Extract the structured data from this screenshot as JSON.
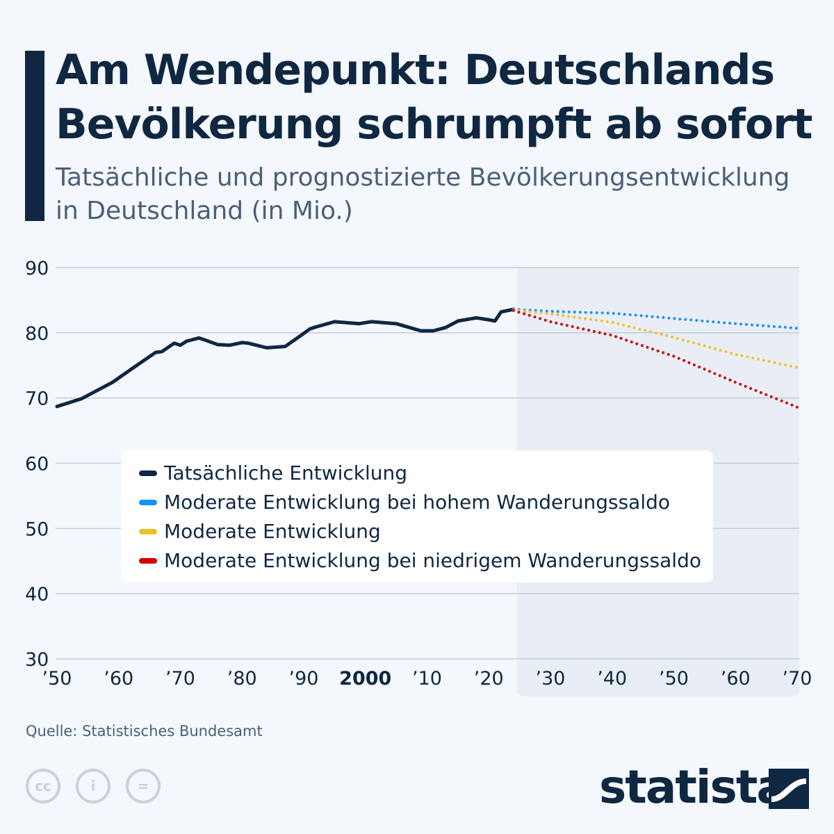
{
  "header": {
    "title": "Am Wendepunkt: Deutschlands Bevölkerung schrumpft ab sofort",
    "subtitle": "Tatsächliche und prognostizierte Bevölkerungsentwicklung in Deutschland (in Mio.)"
  },
  "chart_data": {
    "type": "line",
    "title": "Am Wendepunkt: Deutschlands Bevölkerung schrumpft ab sofort",
    "subtitle": "Tatsächliche und prognostizierte Bevölkerungsentwicklung in Deutschland (in Mio.)",
    "xlim": [
      1950,
      2070
    ],
    "ylim": [
      30,
      90
    ],
    "yticks": [
      90,
      80,
      70,
      60,
      50,
      40,
      30
    ],
    "xticks": [
      {
        "year": 1950,
        "label": "’50"
      },
      {
        "year": 1960,
        "label": "’60"
      },
      {
        "year": 1970,
        "label": "’70"
      },
      {
        "year": 1980,
        "label": "’80"
      },
      {
        "year": 1990,
        "label": "’90"
      },
      {
        "year": 2000,
        "label": "2000",
        "bold": true
      },
      {
        "year": 2010,
        "label": "’10"
      },
      {
        "year": 2020,
        "label": "’20"
      },
      {
        "year": 2030,
        "label": "’30"
      },
      {
        "year": 2040,
        "label": "’40"
      },
      {
        "year": 2050,
        "label": "’50"
      },
      {
        "year": 2060,
        "label": "’60"
      },
      {
        "year": 2070,
        "label": "’70"
      }
    ],
    "grid": true,
    "forecast_region_start": 2024,
    "legend_position": "center-left",
    "series": [
      {
        "name": "Tatsächliche Entwicklung",
        "color": "#0f2741",
        "style": "solid",
        "x": [
          1950,
          1954,
          1959,
          1962,
          1966,
          1967,
          1969,
          1970,
          1971,
          1973,
          1974,
          1976,
          1978,
          1980,
          1981,
          1984,
          1987,
          1990,
          1991,
          1992,
          1995,
          1999,
          2001,
          2005,
          2009,
          2011,
          2013,
          2015,
          2018,
          2020,
          2021,
          2022,
          2024
        ],
        "y": [
          68.7,
          69.9,
          72.4,
          74.4,
          77.0,
          77.1,
          78.4,
          78.1,
          78.7,
          79.2,
          78.9,
          78.2,
          78.1,
          78.5,
          78.4,
          77.7,
          77.9,
          79.9,
          80.6,
          80.9,
          81.7,
          81.4,
          81.7,
          81.4,
          80.3,
          80.3,
          80.8,
          81.8,
          82.3,
          82.0,
          81.8,
          83.2,
          83.6
        ]
      },
      {
        "name": "Moderate Entwicklung bei hohem Wanderungssaldo",
        "color": "#1a90ff",
        "style": "dotted",
        "x": [
          2024,
          2030,
          2040,
          2050,
          2060,
          2070
        ],
        "y": [
          83.6,
          83.3,
          83.0,
          82.2,
          81.4,
          80.7
        ]
      },
      {
        "name": "Moderate Entwicklung",
        "color": "#f0c12c",
        "style": "dotted",
        "x": [
          2024,
          2030,
          2040,
          2050,
          2060,
          2070
        ],
        "y": [
          83.5,
          82.9,
          81.6,
          79.3,
          76.7,
          74.7
        ]
      },
      {
        "name": "Moderate Entwicklung bei niedrigem Wanderungssaldo",
        "color": "#d40000",
        "style": "dotted",
        "x": [
          2024,
          2030,
          2040,
          2050,
          2060,
          2070
        ],
        "y": [
          83.4,
          81.7,
          79.6,
          76.4,
          72.4,
          68.6
        ]
      }
    ]
  },
  "footer": {
    "source": "Quelle: Statistisches Bundesamt",
    "brand": "statista",
    "cc_icons": [
      "cc-icon",
      "attribution-icon",
      "no-derivatives-icon"
    ]
  }
}
